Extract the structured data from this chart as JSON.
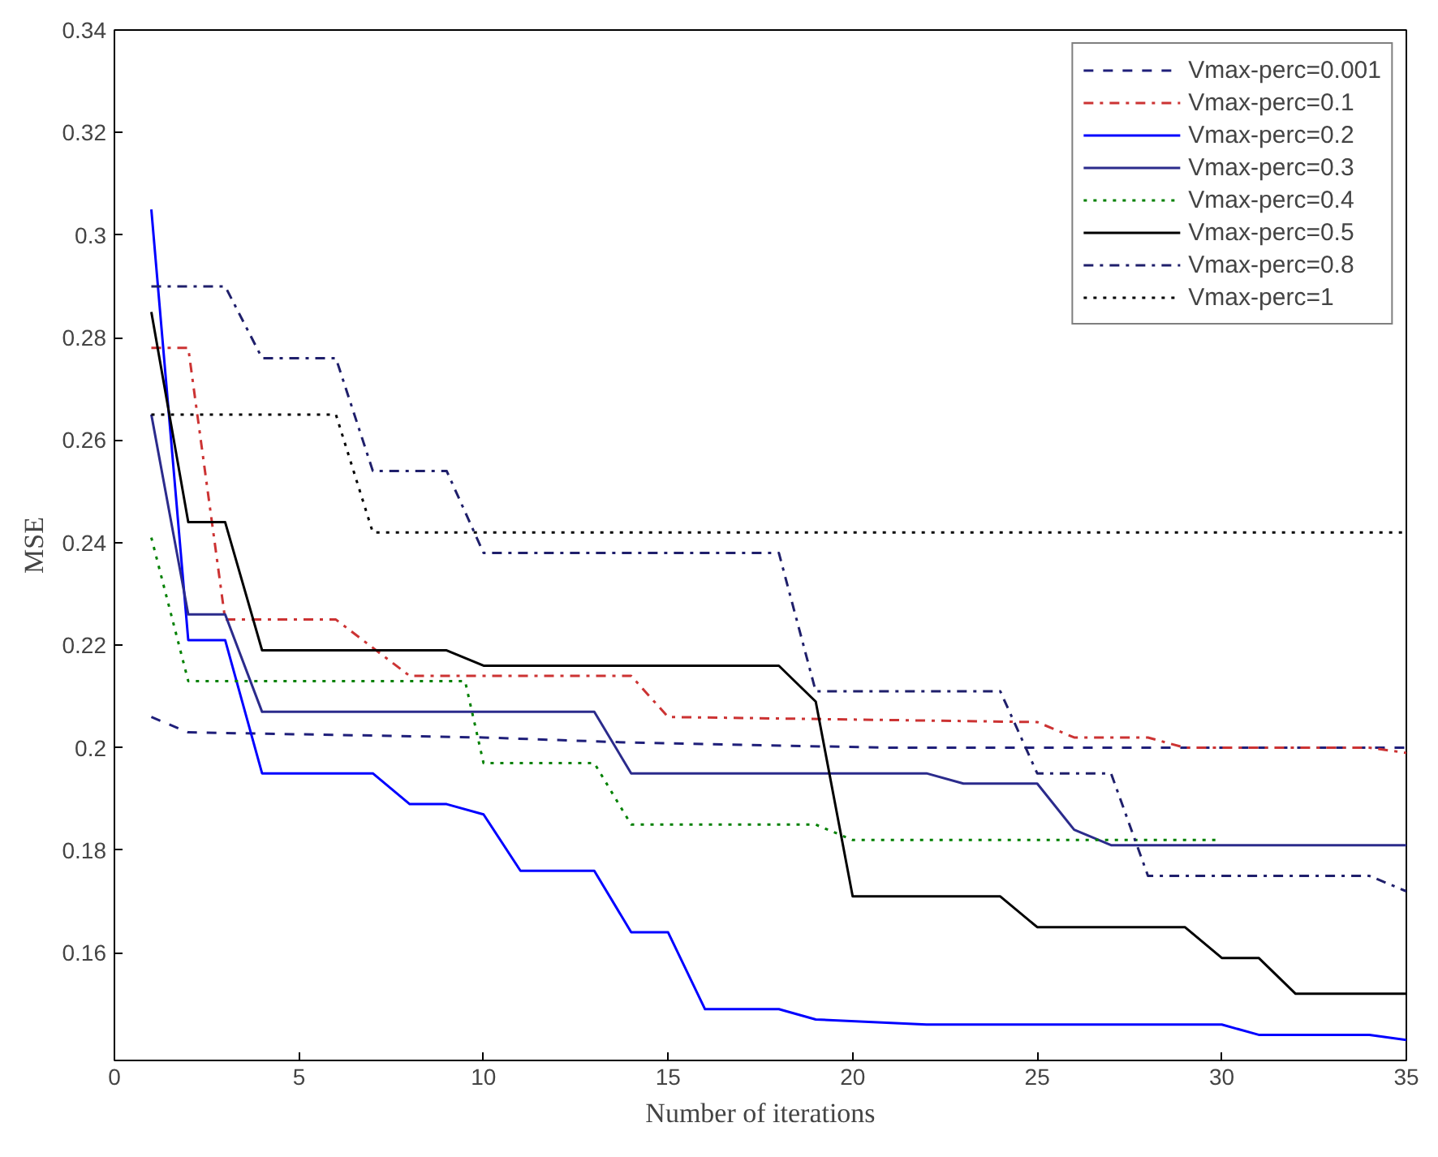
{
  "chart_data": {
    "type": "line",
    "xlabel": "Number of iterations",
    "ylabel": "MSE",
    "xlim": [
      0,
      35
    ],
    "ylim": [
      0.139,
      0.34
    ],
    "xticks": [
      0,
      5,
      10,
      15,
      20,
      25,
      30,
      35
    ],
    "yticks": [
      0.16,
      0.18,
      {
        "value": 0.2,
        "label": "0.2"
      },
      0.22,
      0.24,
      0.26,
      0.28,
      {
        "value": 0.3,
        "label": "0.3"
      },
      0.32,
      0.34
    ],
    "legend": "top right",
    "grid": false,
    "series": [
      {
        "name": "Vmax-perc=0.001",
        "color": "#1f1f7a",
        "line_style": "dashed",
        "x": [
          1,
          2,
          10,
          14,
          21,
          35
        ],
        "values": [
          0.206,
          0.203,
          0.202,
          0.201,
          0.2,
          0.2
        ]
      },
      {
        "name": "Vmax-perc=0.1",
        "color": "#cc3333",
        "line_style": "dashdot",
        "x": [
          1,
          2,
          3,
          6,
          8,
          14,
          15,
          25,
          26,
          28,
          29,
          34,
          35
        ],
        "values": [
          0.278,
          0.278,
          0.225,
          0.225,
          0.214,
          0.214,
          0.206,
          0.205,
          0.202,
          0.202,
          0.2,
          0.2,
          0.199
        ]
      },
      {
        "name": "Vmax-perc=0.2",
        "color": "#0000ff",
        "line_style": "solid",
        "x": [
          1,
          2,
          3,
          4,
          7,
          8,
          9,
          10,
          11,
          13,
          14,
          15,
          16,
          18,
          19,
          22,
          30,
          31,
          34,
          35
        ],
        "values": [
          0.305,
          0.221,
          0.221,
          0.195,
          0.195,
          0.189,
          0.189,
          0.187,
          0.176,
          0.176,
          0.164,
          0.164,
          0.149,
          0.149,
          0.147,
          0.146,
          0.146,
          0.144,
          0.144,
          0.143
        ]
      },
      {
        "name": "Vmax-perc=0.3",
        "color": "#2b2b8c",
        "line_style": "solid",
        "x": [
          1,
          2,
          3,
          4,
          13,
          14,
          22,
          23,
          25,
          26,
          27,
          35
        ],
        "values": [
          0.265,
          0.226,
          0.226,
          0.207,
          0.207,
          0.195,
          0.195,
          0.193,
          0.193,
          0.184,
          0.181,
          0.181
        ]
      },
      {
        "name": "Vmax-perc=0.4",
        "color": "#008000",
        "line_style": "dotted",
        "x": [
          1,
          2,
          9.5,
          10,
          13,
          14,
          19,
          20,
          30
        ],
        "values": [
          0.241,
          0.213,
          0.213,
          0.197,
          0.197,
          0.185,
          0.185,
          0.182,
          0.182
        ]
      },
      {
        "name": "Vmax-perc=0.5",
        "color": "#000000",
        "line_style": "solid",
        "x": [
          1,
          2,
          3,
          4,
          9,
          10,
          18,
          19,
          20,
          24,
          25,
          29,
          30,
          31,
          32,
          35
        ],
        "values": [
          0.285,
          0.244,
          0.244,
          0.219,
          0.219,
          0.216,
          0.216,
          0.209,
          0.171,
          0.171,
          0.165,
          0.165,
          0.159,
          0.159,
          0.152,
          0.152
        ]
      },
      {
        "name": "Vmax-perc=0.8",
        "color": "#1f1f6b",
        "line_style": "dashdot",
        "x": [
          1,
          3,
          4,
          6,
          7,
          9,
          10,
          18,
          19,
          24,
          25,
          27,
          28,
          34,
          35
        ],
        "values": [
          0.29,
          0.29,
          0.276,
          0.276,
          0.254,
          0.254,
          0.238,
          0.238,
          0.211,
          0.211,
          0.195,
          0.195,
          0.175,
          0.175,
          0.172
        ]
      },
      {
        "name": "Vmax-perc=1",
        "color": "#000000",
        "line_style": "dotted",
        "x": [
          1,
          6,
          7,
          35
        ],
        "values": [
          0.265,
          0.265,
          0.242,
          0.242
        ]
      }
    ]
  }
}
